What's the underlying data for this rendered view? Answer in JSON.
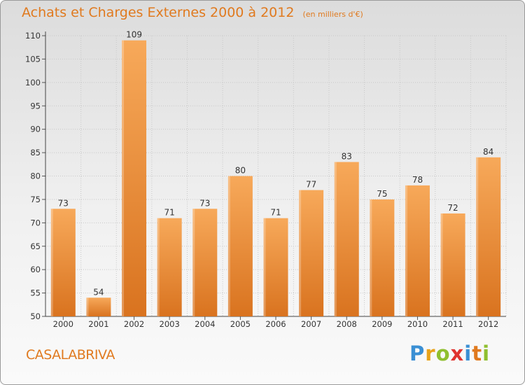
{
  "header": {
    "title": "Achats et Charges Externes 2000 à 2012",
    "subtitle": "(en milliers d'€)"
  },
  "footer": {
    "location": "CASALABRIVA",
    "logo": [
      "P",
      "r",
      "o",
      "x",
      "i",
      "t",
      "i"
    ]
  },
  "colors": {
    "bar_top": "#f7a95a",
    "bar_bottom": "#d9731f",
    "title": "#e07a1f"
  },
  "chart_data": {
    "type": "bar",
    "title": "Achats et Charges Externes 2000 à 2012",
    "subtitle": "(en milliers d'€)",
    "xlabel": "",
    "ylabel": "",
    "ylim": [
      50,
      110
    ],
    "yticks": [
      50,
      55,
      60,
      65,
      70,
      75,
      80,
      85,
      90,
      95,
      100,
      105,
      110
    ],
    "grid": true,
    "categories": [
      "2000",
      "2001",
      "2002",
      "2003",
      "2004",
      "2005",
      "2006",
      "2007",
      "2008",
      "2009",
      "2010",
      "2011",
      "2012"
    ],
    "values": [
      73,
      54,
      109,
      71,
      73,
      80,
      71,
      77,
      83,
      75,
      78,
      72,
      84
    ]
  }
}
